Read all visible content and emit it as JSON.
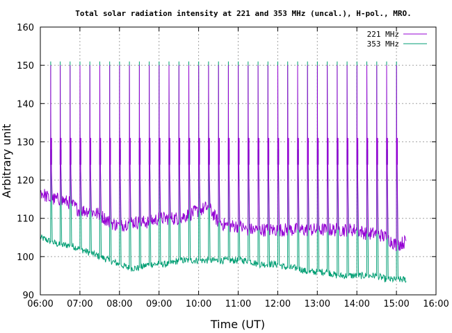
{
  "chart_data": {
    "type": "line",
    "title": "Total solar radiation intensity at 221 and 353 MHz (uncal.), H-pol., MRO.",
    "xlabel": "Time (UT)",
    "ylabel": "Arbitrary unit",
    "xlim": [
      6.0,
      16.0
    ],
    "ylim": [
      90,
      160
    ],
    "xticks": [
      "06:00",
      "07:00",
      "08:00",
      "09:00",
      "10:00",
      "11:00",
      "12:00",
      "13:00",
      "14:00",
      "15:00",
      "16:00"
    ],
    "yticks": [
      90,
      100,
      110,
      120,
      130,
      140,
      150,
      160
    ],
    "grid": true,
    "legend_position": "top-right",
    "calibration_times_hours": [
      6.28,
      6.52,
      6.77,
      7.02,
      7.27,
      7.52,
      7.77,
      8.02,
      8.27,
      8.52,
      8.77,
      9.02,
      9.27,
      9.52,
      9.77,
      10.02,
      10.27,
      10.52,
      10.77,
      11.02,
      11.27,
      11.52,
      11.77,
      12.02,
      12.27,
      12.52,
      12.77,
      13.02,
      13.27,
      13.52,
      13.77,
      14.02,
      14.27,
      14.52,
      14.77,
      15.02
    ],
    "series": [
      {
        "name": "221 MHz",
        "color": "#9400d3",
        "x_hours": [
          6.0,
          6.25,
          6.5,
          6.75,
          7.0,
          7.25,
          7.5,
          7.75,
          8.0,
          8.25,
          8.5,
          8.75,
          9.0,
          9.25,
          9.5,
          9.75,
          10.0,
          10.25,
          10.5,
          10.75,
          11.0,
          11.25,
          11.5,
          11.75,
          12.0,
          12.25,
          12.5,
          12.75,
          13.0,
          13.25,
          13.5,
          13.75,
          14.0,
          14.25,
          14.5,
          14.75,
          15.0,
          15.25
        ],
        "values": [
          117,
          115,
          115,
          114,
          112,
          112,
          111,
          109,
          108,
          109,
          109,
          109,
          110,
          110,
          110,
          111,
          112,
          113,
          109,
          108,
          108,
          107,
          107,
          107,
          107,
          107,
          107,
          107,
          107,
          107,
          107,
          107,
          107,
          106,
          106,
          105,
          103,
          104
        ],
        "pulse_low": 124,
        "pulse_high": 131,
        "pulse_peak": 150
      },
      {
        "name": "353 MHz",
        "color": "#009e73",
        "x_hours": [
          6.0,
          6.25,
          6.5,
          6.75,
          7.0,
          7.25,
          7.5,
          7.75,
          8.0,
          8.25,
          8.5,
          8.75,
          9.0,
          9.25,
          9.5,
          9.75,
          10.0,
          10.25,
          10.5,
          10.75,
          11.0,
          11.25,
          11.5,
          11.75,
          12.0,
          12.25,
          12.5,
          12.75,
          13.0,
          13.25,
          13.5,
          13.75,
          14.0,
          14.25,
          14.5,
          14.75,
          15.0,
          15.25
        ],
        "values": [
          105,
          104,
          103,
          103,
          102,
          101,
          100,
          99,
          98,
          97,
          97,
          98,
          98,
          98,
          99,
          99,
          99,
          99,
          99,
          99,
          99,
          99,
          98,
          98,
          98,
          97,
          97,
          96,
          96,
          96,
          95,
          95,
          95,
          95,
          95,
          94,
          94,
          94
        ],
        "pulse_low": 124,
        "pulse_high": 128,
        "pulse_peak": 151
      }
    ]
  }
}
